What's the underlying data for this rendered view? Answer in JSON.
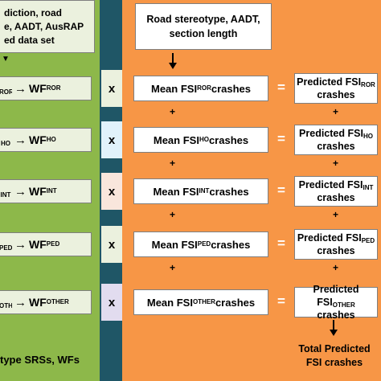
{
  "left": {
    "top_lines": [
      "diction, road",
      "e, AADT, AusRAP",
      "ed data set"
    ],
    "rows": [
      {
        "pre": "ROR",
        "label": "WF",
        "sub": "ROR"
      },
      {
        "pre": "HO",
        "label": "WF",
        "sub": "HO"
      },
      {
        "pre": "INT",
        "label": "WF",
        "sub": "INT"
      },
      {
        "pre": "PED",
        "label": "WF",
        "sub": "PED"
      },
      {
        "pre": "OTHER",
        "label": "WF",
        "sub": "OTHER"
      }
    ],
    "arrow": "→",
    "bottom_text": "type SRSs, WFs"
  },
  "multiplier": "x",
  "right": {
    "top_text": "Road stereotype, AADT, section length",
    "mean_prefix": "Mean FSI",
    "mean_suffix": " crashes",
    "rows": [
      "ROR",
      "HO",
      "INT",
      "PED",
      "OTHER"
    ],
    "predicted_prefix": "Predicted FSI",
    "predicted_suffix": "crashes",
    "equals": "=",
    "plus": "+",
    "total": "Total Predicted FSI crashes"
  },
  "colors": {
    "left_panel": "#8db84a",
    "divider": "#1f5666",
    "right_panel": "#f79646",
    "left_boxes": "#ebf1de",
    "right_boxes": "#ffffff",
    "mul_cells": [
      "#ebf1de",
      "#e1f2fb",
      "#f9e6dc",
      "#ebf1de",
      "#e2dcef"
    ]
  }
}
